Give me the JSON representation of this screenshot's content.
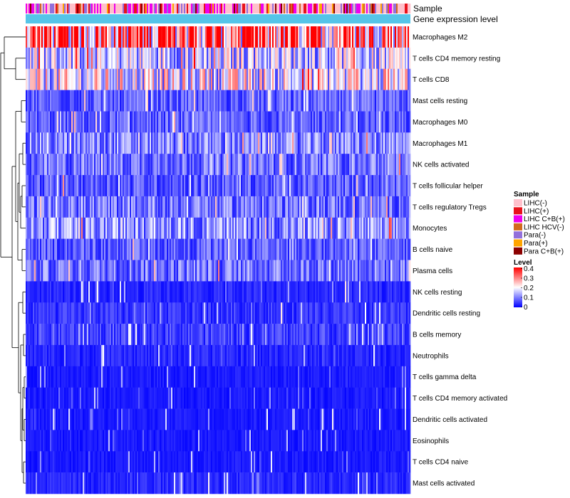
{
  "chart_data": {
    "type": "heatmap",
    "annotation_labels": [
      "Sample",
      "Gene expression level"
    ],
    "rows": [
      {
        "name": "Macrophages M2",
        "mean": 0.3
      },
      {
        "name": "T cells CD4 memory resting",
        "mean": 0.16
      },
      {
        "name": "T cells CD8",
        "mean": 0.18
      },
      {
        "name": "Mast cells resting",
        "mean": 0.07
      },
      {
        "name": "Macrophages M0",
        "mean": 0.07
      },
      {
        "name": "Macrophages M1",
        "mean": 0.1
      },
      {
        "name": "NK cells activated",
        "mean": 0.09
      },
      {
        "name": "T cells follicular helper",
        "mean": 0.07
      },
      {
        "name": "T cells regulatory  Tregs",
        "mean": 0.09
      },
      {
        "name": "Monocytes",
        "mean": 0.11
      },
      {
        "name": "B cells naive",
        "mean": 0.07
      },
      {
        "name": "Plasma cells",
        "mean": 0.09
      },
      {
        "name": "NK cells resting",
        "mean": 0.03
      },
      {
        "name": "Dendritic cells resting",
        "mean": 0.04
      },
      {
        "name": "B cells memory",
        "mean": 0.05
      },
      {
        "name": "Neutrophils",
        "mean": 0.03
      },
      {
        "name": "T cells gamma delta",
        "mean": 0.02
      },
      {
        "name": "T cells CD4 memory activated",
        "mean": 0.02
      },
      {
        "name": "Dendritic cells activated",
        "mean": 0.02
      },
      {
        "name": "Eosinophils",
        "mean": 0.02
      },
      {
        "name": "T cells CD4 naive",
        "mean": 0.02
      },
      {
        "name": "Mast cells activated",
        "mean": 0.03
      }
    ],
    "sample_legend": {
      "title": "Sample",
      "entries": [
        {
          "label": "LIHC(-)",
          "color": "#ffc0cb"
        },
        {
          "label": "LIHC(+)",
          "color": "#e8121b"
        },
        {
          "label": "LIHC C+B(+)",
          "color": "#ee00ee"
        },
        {
          "label": "LIHC HCV(-)",
          "color": "#d2691e"
        },
        {
          "label": "Para(-)",
          "color": "#9370db"
        },
        {
          "label": "Para(+)",
          "color": "#ffa500"
        },
        {
          "label": "Para C+B(+)",
          "color": "#8b0000"
        }
      ]
    },
    "level_legend": {
      "title": "Level",
      "ticks": [
        "0.4",
        "0.3",
        "0.2",
        "0.1",
        "0"
      ],
      "min": 0,
      "max": 0.4,
      "colors": [
        "#0000ff",
        "#ffffff",
        "#ff0000"
      ]
    },
    "expression_bar_color": "#55c4e8"
  }
}
